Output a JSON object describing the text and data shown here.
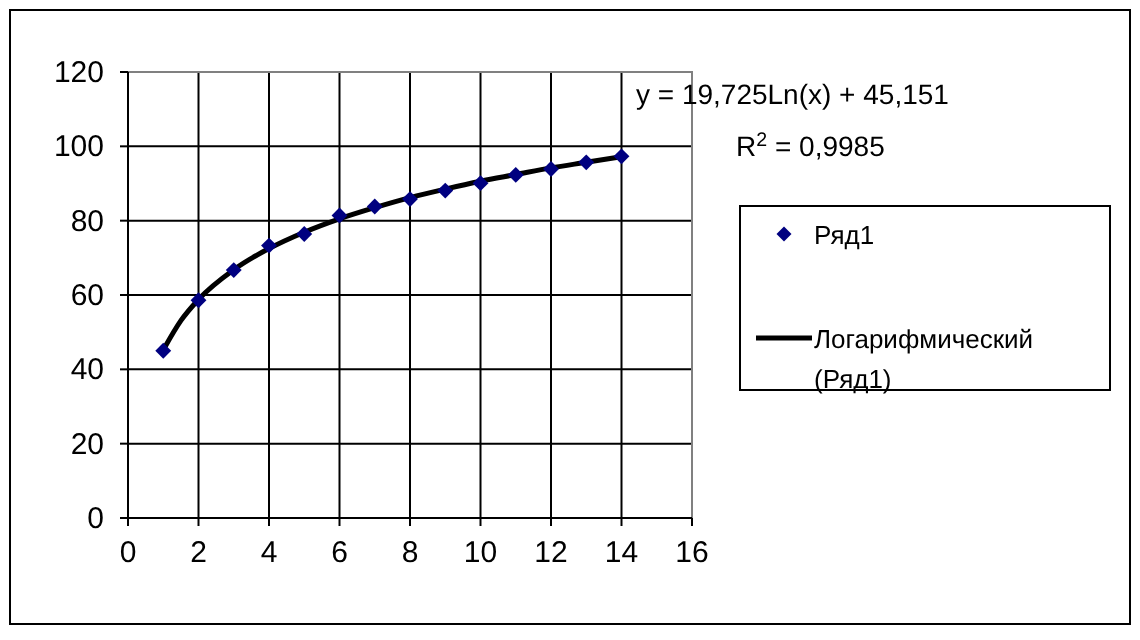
{
  "chart_data": {
    "type": "scatter",
    "x": [
      1,
      2,
      3,
      4,
      5,
      6,
      7,
      8,
      9,
      10,
      11,
      12,
      13,
      14
    ],
    "series": [
      {
        "name": "Ряд1",
        "color": "#000080",
        "marker": "diamond",
        "values": [
          45,
          58.6,
          66.7,
          73.3,
          76.4,
          81.4,
          83.8,
          85.8,
          88.1,
          90.1,
          92.3,
          93.9,
          95.7,
          97.3
        ]
      },
      {
        "name": "Логарифмический (Ряд1)",
        "type": "line",
        "color": "#000000",
        "marker": "none",
        "line_style": "solid",
        "x": [
          1,
          1.5,
          2,
          3,
          4,
          5,
          6,
          7,
          8,
          9,
          10,
          11,
          12,
          13,
          14
        ],
        "values": [
          45.2,
          53.1,
          58.8,
          66.8,
          72.5,
          76.9,
          80.5,
          83.5,
          86.2,
          88.5,
          90.6,
          92.4,
          94.2,
          95.7,
          97.2
        ]
      }
    ],
    "xlim": [
      0,
      16
    ],
    "xticks": [
      0,
      2,
      4,
      6,
      8,
      10,
      12,
      14,
      16
    ],
    "ylim": [
      0,
      120
    ],
    "yticks": [
      0,
      20,
      40,
      60,
      80,
      100,
      120
    ],
    "grid": true,
    "legend": "right",
    "annotations": [
      "y = 19,725Ln(x) + 45,151",
      "R$^{2}$ = 0,9985"
    ]
  }
}
